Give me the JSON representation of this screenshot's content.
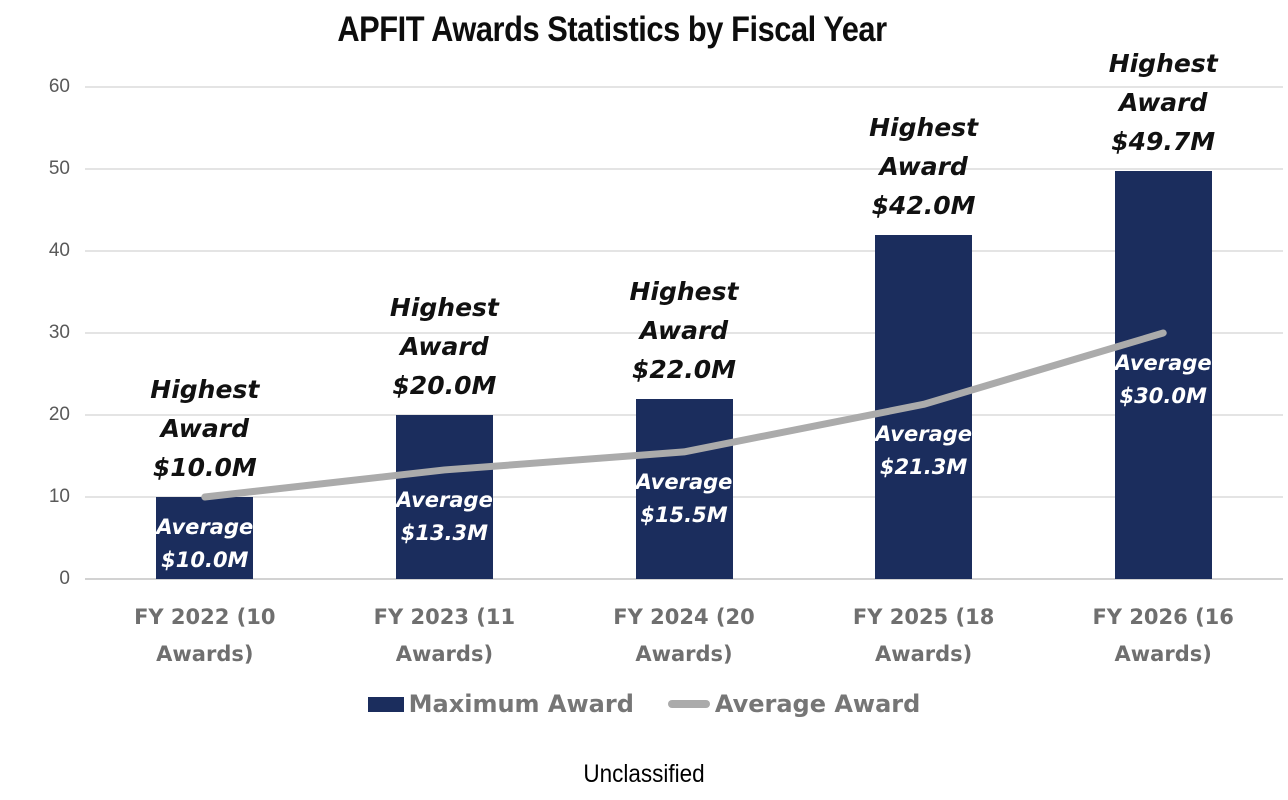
{
  "title": "APFIT Awards Statistics by Fiscal Year",
  "footer": "Unclassified",
  "colors": {
    "bar": "#1b2d5d",
    "line": "#ababab",
    "grid": "#e4e4e4",
    "axis_text": "#595959",
    "category_text": "#6f6f6f",
    "legend_text": "#767676"
  },
  "chart_data": {
    "type": "bar",
    "title": "APFIT Awards Statistics by Fiscal Year",
    "categories": [
      "FY 2022 (10 Awards)",
      "FY 2023 (11 Awards)",
      "FY 2024 (20 Awards)",
      "FY 2025 (18 Awards)",
      "FY 2026 (16 Awards)"
    ],
    "series": [
      {
        "name": "Maximum Award",
        "type": "bar",
        "values": [
          10,
          20,
          22,
          42,
          49.7
        ],
        "value_labels": [
          "$10.0M",
          "$20.0M",
          "$22.0M",
          "$42.0M",
          "$49.7M"
        ],
        "label_prefix_lines": [
          "Highest",
          "Award"
        ]
      },
      {
        "name": "Average Award",
        "type": "line",
        "values": [
          10,
          13.3,
          15.5,
          21.3,
          30
        ],
        "value_labels": [
          "$10.0M",
          "$13.3M",
          "$15.5M",
          "$21.3M",
          "$30.0M"
        ],
        "label_prefix_lines": [
          "Average"
        ]
      }
    ],
    "xlabel": "",
    "ylabel": "",
    "ylim": [
      0,
      60
    ],
    "yticks": [
      0,
      10,
      20,
      30,
      40,
      50,
      60
    ],
    "grid": true,
    "legend_position": "bottom",
    "footnote": "Unclassified"
  }
}
